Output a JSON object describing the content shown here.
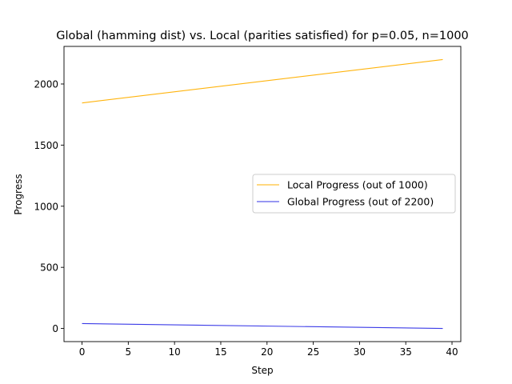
{
  "chart_data": {
    "type": "line",
    "title": "Global (hamming dist) vs. Local (parities satisfied) for p=0.05, n=1000",
    "xlabel": "Step",
    "ylabel": "Progress",
    "xlim": [
      -1.95,
      40.95
    ],
    "ylim": [
      -107.5,
      2307.5
    ],
    "xticks": [
      0,
      5,
      10,
      15,
      20,
      25,
      30,
      35,
      40
    ],
    "yticks": [
      0,
      500,
      1000,
      1500,
      2000
    ],
    "grid": false,
    "legend_position": "center-right",
    "series": [
      {
        "name": "Local Progress (out of 1000)",
        "color": "#FFB000",
        "x_start": 0,
        "x_end": 39,
        "y_start": 1845,
        "y_end": 2200
      },
      {
        "name": "Global Progress (out of 2200)",
        "color": "#3232E6",
        "x_start": 0,
        "x_end": 39,
        "y_start": 40,
        "y_end": 0
      }
    ]
  }
}
